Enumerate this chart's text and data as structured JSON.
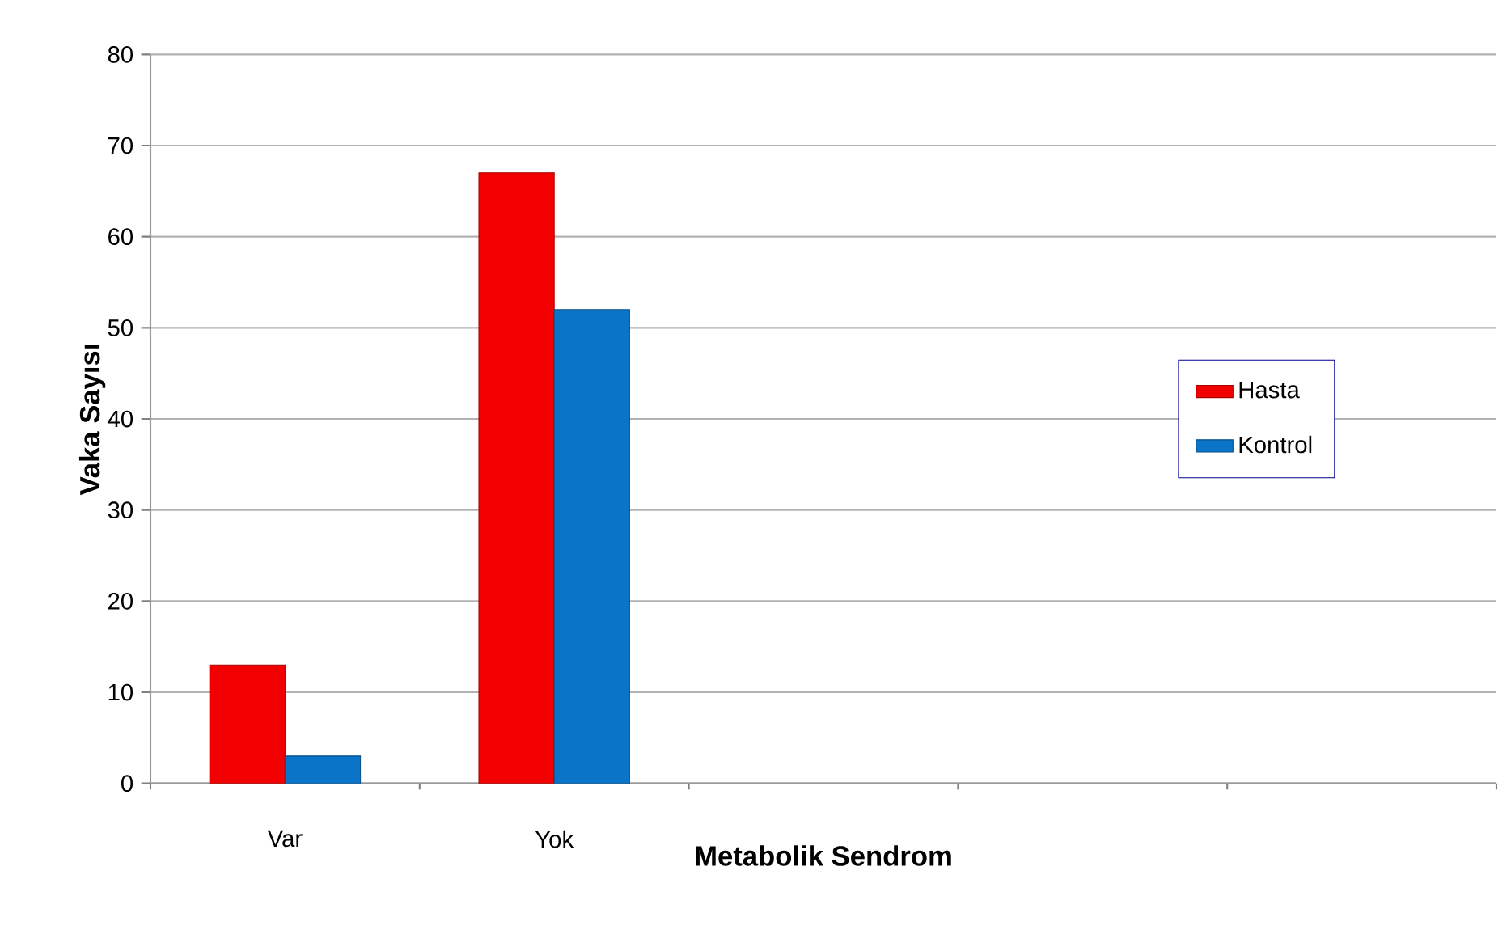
{
  "chart_data": {
    "type": "bar",
    "xlabel": "Metabolik Sendrom",
    "ylabel": "Vaka Sayısı",
    "categories": [
      "Var",
      "Yok",
      null,
      null,
      null
    ],
    "series": [
      {
        "name": "Hasta",
        "color": "#f20000",
        "values": [
          13,
          67,
          null,
          null,
          null
        ]
      },
      {
        "name": "Kontrol",
        "color": "#0a74c8",
        "values": [
          3,
          52,
          null,
          null,
          null
        ]
      }
    ],
    "ylim": [
      0,
      80
    ],
    "yticks": [
      0,
      10,
      20,
      30,
      40,
      50,
      60,
      70,
      80
    ],
    "grid": "y",
    "legend": "right"
  }
}
